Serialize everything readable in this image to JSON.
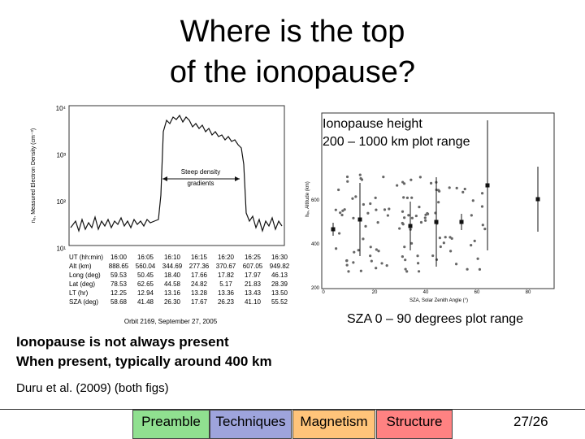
{
  "header": {
    "title": [
      "Where is the top",
      "of the ionopause?"
    ]
  },
  "figure_left": {
    "y_axis_label": "nₑ, Measured Electron Density (cm⁻³)",
    "y_ticks": [
      "10⁴",
      "10³",
      "10²",
      "10¹"
    ],
    "annotation": [
      "Steep density",
      "gradients"
    ],
    "table": {
      "rows": [
        [
          "UT (hh:min)",
          "16:00",
          "16:05",
          "16:10",
          "16:15",
          "16:20",
          "16:25",
          "16:30"
        ],
        [
          "Alt (km)",
          "888.65",
          "560.04",
          "344.69",
          "277.36",
          "370.67",
          "607.05",
          "949.82"
        ],
        [
          "Long (deg)",
          "59.53",
          "50.45",
          "18.40",
          "17.66",
          "17.82",
          "17.97",
          "46.13"
        ],
        [
          "Lat (deg)",
          "78.53",
          "62.65",
          "44.58",
          "24.82",
          "5.17",
          "21.83",
          "28.39"
        ],
        [
          "LT (hr)",
          "12.25",
          "12.94",
          "13.16",
          "13.28",
          "13.36",
          "13.43",
          "13.50"
        ],
        [
          "SZA (deg)",
          "58.68",
          "41.48",
          "26.30",
          "17.67",
          "26.23",
          "41.10",
          "55.52"
        ]
      ]
    },
    "caption": "Orbit 2169, September 27, 2005"
  },
  "figure_right": {
    "labels": [
      "Ionopause height",
      "200 – 1000 km plot range"
    ],
    "y_axis_label": "hᵢₚ, Altitude (km)",
    "y_ticks": [
      "600",
      "400",
      "200"
    ],
    "x_ticks": [
      "0",
      "20",
      "40",
      "60",
      "80"
    ],
    "x_axis_label": "SZA, Solar Zenith Angle (°)",
    "caption": "SZA 0 – 90 degrees plot range"
  },
  "body": {
    "points": [
      "Ionopause is not always present",
      "When present, typically around 400 km"
    ],
    "reference": "Duru et al. (2009) (both figs)"
  },
  "footer": {
    "nav": [
      "Preamble",
      "Techniques",
      "Magnetism",
      "Structure"
    ],
    "page": "27/26"
  }
}
